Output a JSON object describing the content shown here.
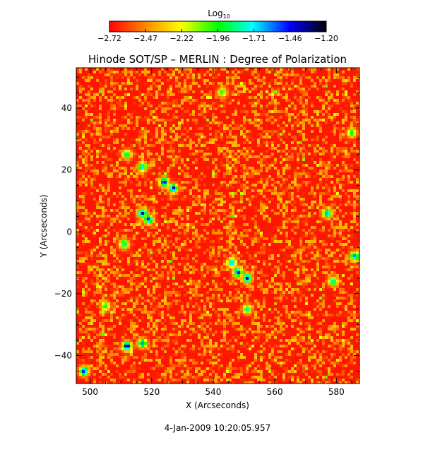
{
  "chart_data": {
    "type": "heatmap",
    "title": "Hinode SOT/SP – MERLIN : Degree of Polarization",
    "timestamp": "4-Jan-2009 10:20:05.957",
    "xlabel": "X (Arcseconds)",
    "ylabel": "Y (Arcseconds)",
    "xlim": [
      495.5,
      587.5
    ],
    "ylim": [
      -49,
      53
    ],
    "xticks": [
      500,
      520,
      540,
      560,
      580
    ],
    "yticks": [
      -40,
      -20,
      0,
      20,
      40
    ],
    "colorbar": {
      "label_base": "Log",
      "label_sub": "10",
      "range": [
        -2.72,
        -1.2
      ],
      "ticks": [
        "−2.72",
        "−2.47",
        "−2.22",
        "−1.96",
        "−1.71",
        "−1.46",
        "−1.20"
      ],
      "colors": [
        "#ff0000",
        "#ff8c00",
        "#ffff00",
        "#00ff00",
        "#00ffff",
        "#0000ff",
        "#000000"
      ]
    },
    "background_level": -2.68,
    "features": [
      {
        "x": 524,
        "y": 16,
        "level": -1.4
      },
      {
        "x": 527,
        "y": 14,
        "level": -1.42
      },
      {
        "x": 517,
        "y": 6,
        "level": -1.38
      },
      {
        "x": 519,
        "y": 4,
        "level": -1.45
      },
      {
        "x": 512,
        "y": -37,
        "level": -1.25
      },
      {
        "x": 517,
        "y": -36,
        "level": -1.6
      },
      {
        "x": 548,
        "y": -13,
        "level": -1.42
      },
      {
        "x": 551,
        "y": -15,
        "level": -1.35
      },
      {
        "x": 546,
        "y": -10,
        "level": -1.55
      },
      {
        "x": 498,
        "y": -45,
        "level": -1.45
      },
      {
        "x": 586,
        "y": -8,
        "level": -1.55
      },
      {
        "x": 577,
        "y": 6,
        "level": -1.6
      },
      {
        "x": 579,
        "y": -16,
        "level": -1.7
      },
      {
        "x": 512,
        "y": 25,
        "level": -1.75
      },
      {
        "x": 517,
        "y": 21,
        "level": -1.65
      },
      {
        "x": 511,
        "y": -4,
        "level": -1.7
      },
      {
        "x": 551,
        "y": -25,
        "level": -1.8
      },
      {
        "x": 505,
        "y": -24,
        "level": -1.85
      },
      {
        "x": 585,
        "y": 32,
        "level": -1.9
      },
      {
        "x": 543,
        "y": 45,
        "level": -1.95
      }
    ]
  }
}
